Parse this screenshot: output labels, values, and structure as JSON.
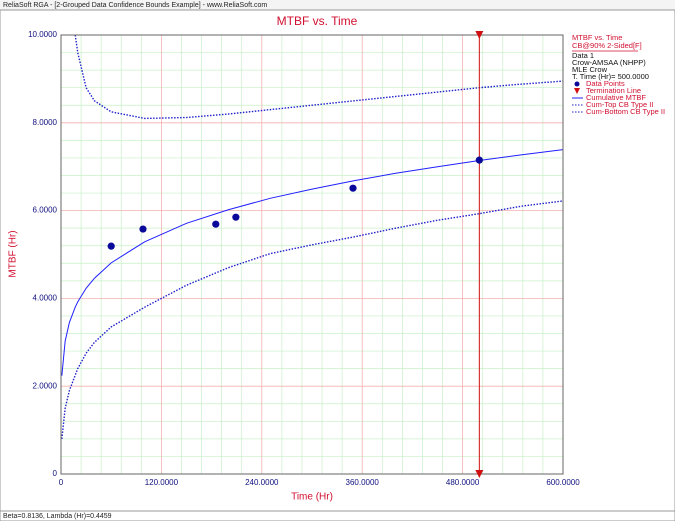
{
  "window": {
    "title": "ReliaSoft RGA - [2-Grouped Data Confidence Bounds Example] - www.ReliaSoft.com"
  },
  "status_bar": "Beta=0.8136, Lambda (Hr)=0.4459",
  "chart_data": {
    "type": "line",
    "title": "MTBF vs. Time",
    "x_label": "Time (Hr)",
    "y_label": "MTBF (Hr)",
    "legend_header": [
      "MTBF vs. Time",
      "CB@90% 2-Sided[F]",
      "Data 1",
      "Crow-AMSAA (NHPP)",
      "MLE Crow",
      "T. Time (Hr)= 500.0000"
    ],
    "points": {
      "name": "Data Points",
      "color": "#0a0a9a",
      "x": [
        60,
        98,
        185,
        209,
        349,
        500
      ],
      "values": [
        5.19,
        5.58,
        5.69,
        5.85,
        6.51,
        7.15
      ]
    },
    "termination": {
      "name": "Termination Line",
      "color": "#d01010",
      "x": 500
    },
    "x": [
      1,
      5,
      10,
      17,
      20,
      30,
      40,
      60,
      100,
      150,
      200,
      250,
      300,
      350,
      400,
      450,
      500,
      550,
      600
    ],
    "series": [
      {
        "name": "Cumulative MTBF",
        "color": "#2020ff",
        "dash": false,
        "values": [
          2.24,
          3.03,
          3.45,
          3.8,
          3.92,
          4.23,
          4.46,
          4.81,
          5.29,
          5.71,
          6.02,
          6.28,
          6.49,
          6.68,
          6.85,
          7.0,
          7.14,
          7.27,
          7.39
        ]
      },
      {
        "name": "Cum-Top CB Type II",
        "color": "#2020cc",
        "dash": true,
        "values": [
          null,
          null,
          null,
          10,
          9.6,
          8.8,
          8.5,
          8.25,
          8.1,
          8.12,
          8.2,
          8.3,
          8.4,
          8.5,
          8.6,
          8.7,
          8.8,
          8.88,
          8.95
        ]
      },
      {
        "name": "Cum-Bottom CB Type II",
        "color": "#2020cc",
        "dash": true,
        "values": [
          0.8,
          1.5,
          1.9,
          2.25,
          2.4,
          2.75,
          3.0,
          3.35,
          3.8,
          4.3,
          4.7,
          5.02,
          5.22,
          5.4,
          5.6,
          5.78,
          5.93,
          6.1,
          6.22
        ]
      }
    ],
    "xlim": [
      0,
      600
    ],
    "ylim": [
      0,
      10
    ],
    "xticks": [
      0,
      {
        "value": 120,
        "label": "120.0000"
      },
      {
        "value": 240,
        "label": "240.0000"
      },
      {
        "value": 360,
        "label": "360.0000"
      },
      {
        "value": 480,
        "label": "480.0000"
      },
      {
        "value": 600,
        "label": "600.0000"
      }
    ],
    "yticks": [
      0,
      {
        "value": 2,
        "label": "2.0000"
      },
      {
        "value": 4,
        "label": "4.0000"
      },
      {
        "value": 6,
        "label": "6.0000"
      },
      {
        "value": 8,
        "label": "8.0000"
      },
      {
        "value": 10,
        "label": "10.0000"
      }
    ],
    "grid": true
  }
}
